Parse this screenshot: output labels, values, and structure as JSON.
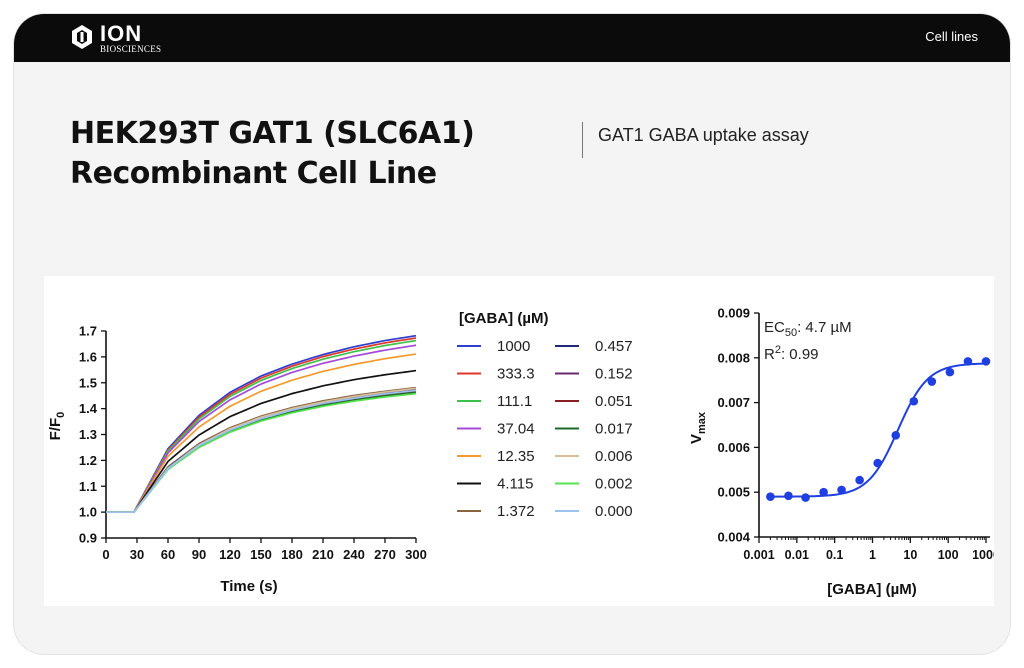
{
  "header": {
    "logo_text": "ION",
    "logo_subtext": "BIOSCIENCES",
    "nav_link": "Cell lines"
  },
  "page": {
    "title_line1": "HEK293T GAT1 (SLC6A1)",
    "title_line2": "Recombinant Cell Line",
    "subtitle": "GAT1 GABA uptake assay"
  },
  "chart_data": [
    {
      "type": "line",
      "title": "",
      "xlabel": "Time (s)",
      "ylabel": "F/F0",
      "xlim": [
        0,
        300
      ],
      "ylim": [
        0.9,
        1.7
      ],
      "x_ticks": [
        0,
        30,
        60,
        90,
        120,
        150,
        180,
        210,
        240,
        270,
        300
      ],
      "y_ticks": [
        0.9,
        1.0,
        1.1,
        1.2,
        1.3,
        1.4,
        1.5,
        1.6,
        1.7
      ],
      "grid": false,
      "legend_title": "[GABA] (µM)",
      "legend_placement": "right",
      "baseline_until": 27,
      "baseline_value": 1.0,
      "series": [
        {
          "name": "1000",
          "color": "#2e3fd0",
          "x": [
            0,
            27,
            60,
            90,
            120,
            150,
            180,
            210,
            240,
            270,
            300
          ],
          "y": [
            1.0,
            1.0,
            1.245,
            1.374,
            1.463,
            1.526,
            1.572,
            1.609,
            1.639,
            1.663,
            1.682
          ]
        },
        {
          "name": "333.3",
          "color": "#e0352b",
          "x": [
            0,
            27,
            60,
            90,
            120,
            150,
            180,
            210,
            240,
            270,
            300
          ],
          "y": [
            1.0,
            1.0,
            1.24,
            1.367,
            1.455,
            1.518,
            1.564,
            1.601,
            1.63,
            1.654,
            1.673
          ]
        },
        {
          "name": "111.1",
          "color": "#3cc24a",
          "x": [
            0,
            27,
            60,
            90,
            120,
            150,
            180,
            210,
            240,
            270,
            300
          ],
          "y": [
            1.0,
            1.0,
            1.236,
            1.36,
            1.447,
            1.509,
            1.555,
            1.591,
            1.62,
            1.644,
            1.663
          ]
        },
        {
          "name": "37.04",
          "color": "#a64ad8",
          "x": [
            0,
            27,
            60,
            90,
            120,
            150,
            180,
            210,
            240,
            270,
            300
          ],
          "y": [
            1.0,
            1.0,
            1.229,
            1.35,
            1.434,
            1.495,
            1.54,
            1.575,
            1.603,
            1.626,
            1.645
          ]
        },
        {
          "name": "12.35",
          "color": "#f39a2b",
          "x": [
            0,
            27,
            60,
            90,
            120,
            150,
            180,
            210,
            240,
            270,
            300
          ],
          "y": [
            1.0,
            1.0,
            1.216,
            1.329,
            1.409,
            1.467,
            1.51,
            1.544,
            1.571,
            1.593,
            1.611
          ]
        },
        {
          "name": "4.115",
          "color": "#111111",
          "x": [
            0,
            27,
            60,
            90,
            120,
            150,
            180,
            210,
            240,
            270,
            300
          ],
          "y": [
            1.0,
            1.0,
            1.196,
            1.298,
            1.369,
            1.42,
            1.458,
            1.488,
            1.512,
            1.531,
            1.547
          ]
        },
        {
          "name": "1.372",
          "color": "#8a6540",
          "x": [
            0,
            27,
            60,
            90,
            120,
            150,
            180,
            210,
            240,
            270,
            300
          ],
          "y": [
            1.0,
            1.0,
            1.175,
            1.265,
            1.326,
            1.371,
            1.404,
            1.43,
            1.451,
            1.467,
            1.481
          ]
        },
        {
          "name": "0.457",
          "color": "#1d2a7a",
          "x": [
            0,
            27,
            60,
            90,
            120,
            150,
            180,
            210,
            240,
            270,
            300
          ],
          "y": [
            1.0,
            1.0,
            1.172,
            1.261,
            1.321,
            1.366,
            1.399,
            1.425,
            1.446,
            1.463,
            1.476
          ]
        },
        {
          "name": "0.152",
          "color": "#6a2a6e",
          "x": [
            0,
            27,
            60,
            90,
            120,
            150,
            180,
            210,
            240,
            270,
            300
          ],
          "y": [
            1.0,
            1.0,
            1.17,
            1.258,
            1.318,
            1.362,
            1.395,
            1.421,
            1.441,
            1.458,
            1.471
          ]
        },
        {
          "name": "0.051",
          "color": "#8a1c24",
          "x": [
            0,
            27,
            60,
            90,
            120,
            150,
            180,
            210,
            240,
            270,
            300
          ],
          "y": [
            1.0,
            1.0,
            1.168,
            1.255,
            1.315,
            1.359,
            1.391,
            1.417,
            1.437,
            1.454,
            1.467
          ]
        },
        {
          "name": "0.017",
          "color": "#1f6a2a",
          "x": [
            0,
            27,
            60,
            90,
            120,
            150,
            180,
            210,
            240,
            270,
            300
          ],
          "y": [
            1.0,
            1.0,
            1.166,
            1.253,
            1.312,
            1.356,
            1.388,
            1.413,
            1.433,
            1.45,
            1.463
          ]
        },
        {
          "name": "0.006",
          "color": "#d8bf9a",
          "x": [
            0,
            27,
            60,
            90,
            120,
            150,
            180,
            210,
            240,
            270,
            300
          ],
          "y": [
            1.0,
            1.0,
            1.17,
            1.26,
            1.322,
            1.367,
            1.4,
            1.426,
            1.447,
            1.464,
            1.478
          ]
        },
        {
          "name": "0.002",
          "color": "#55e04f",
          "x": [
            0,
            27,
            60,
            90,
            120,
            150,
            180,
            210,
            240,
            270,
            300
          ],
          "y": [
            1.0,
            1.0,
            1.165,
            1.25,
            1.309,
            1.352,
            1.384,
            1.409,
            1.429,
            1.445,
            1.458
          ]
        },
        {
          "name": "0.000",
          "color": "#9cc2f0",
          "x": [
            0,
            27,
            60,
            90,
            120,
            150,
            180,
            210,
            240,
            270,
            300
          ],
          "y": [
            1.0,
            1.0,
            1.169,
            1.257,
            1.317,
            1.361,
            1.394,
            1.42,
            1.44,
            1.457,
            1.47
          ]
        }
      ]
    },
    {
      "type": "scatter",
      "title": "",
      "xlabel": "[GABA] (µM)",
      "ylabel": "Vmax",
      "xscale": "log",
      "xlim": [
        0.001,
        1000
      ],
      "ylim": [
        0.004,
        0.009
      ],
      "x_tick_labels": [
        "0.001",
        "0.01",
        "0.1",
        "1",
        "10",
        "100",
        "1000"
      ],
      "y_ticks": [
        "0.004",
        "0.005",
        "0.006",
        "0.007",
        "0.008",
        "0.009"
      ],
      "grid": false,
      "color": "#1f3fe0",
      "annotations": {
        "ec50_label": "EC",
        "ec50_sub": "50",
        "ec50_value": ": 4.7 µM",
        "r2_label": "R",
        "r2_sup": "2",
        "r2_value": ": 0.99"
      },
      "points": {
        "x": [
          0.002,
          0.006,
          0.017,
          0.051,
          0.152,
          0.457,
          1.372,
          4.115,
          12.35,
          37.04,
          111.1,
          333.3,
          1000
        ],
        "y": [
          0.0049,
          0.00492,
          0.00488,
          0.005,
          0.00505,
          0.00527,
          0.00565,
          0.00627,
          0.00703,
          0.00747,
          0.00768,
          0.00792,
          0.00792
        ]
      },
      "fit": {
        "bottom": 0.0049,
        "top": 0.00788,
        "ec50": 4.7,
        "hill": 1.1
      }
    }
  ]
}
